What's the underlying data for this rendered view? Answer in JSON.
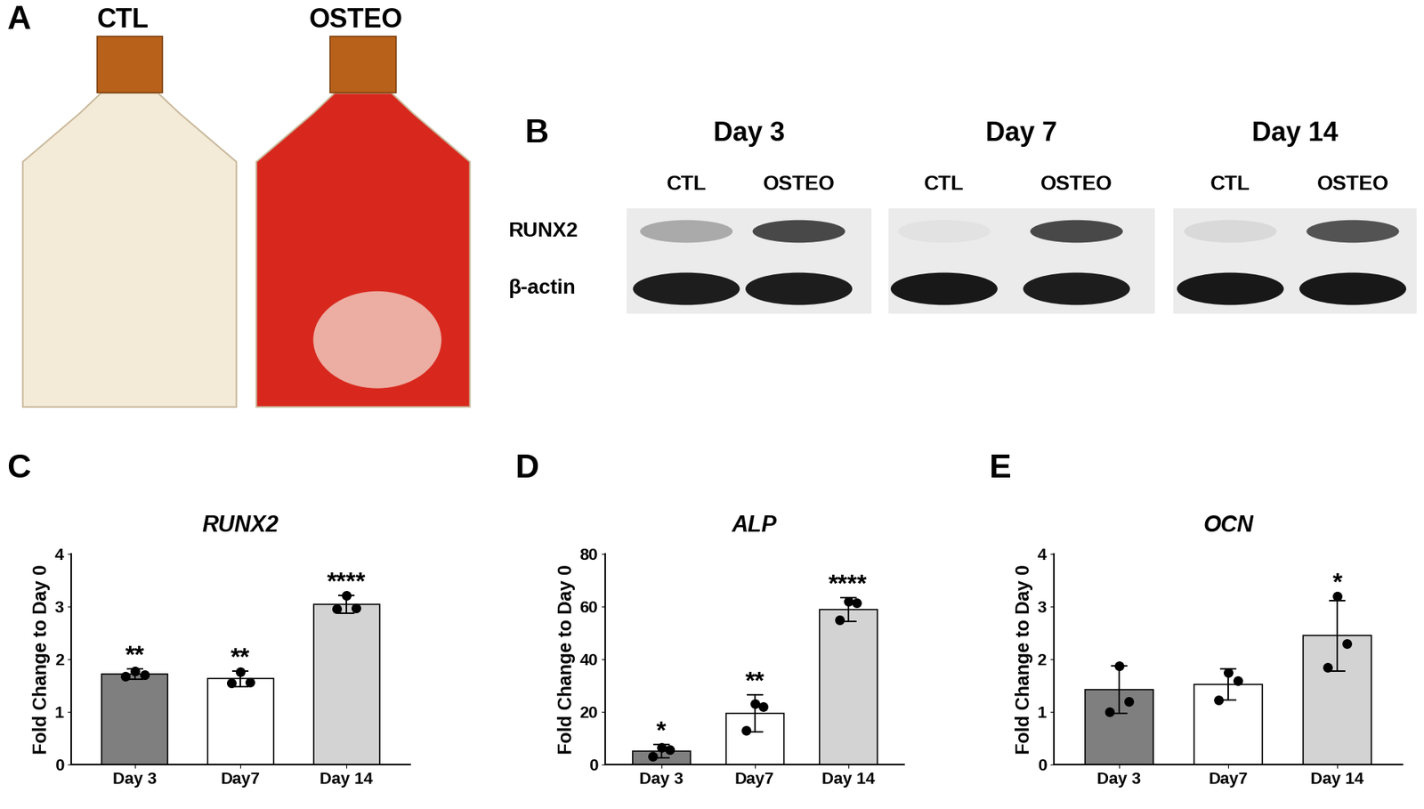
{
  "panel_A": {
    "label": "A",
    "flasks": [
      {
        "label": "CTL",
        "color": "#f3ead8"
      },
      {
        "label": "OSTEO",
        "color": "#d8281e"
      }
    ]
  },
  "panel_B": {
    "label": "B",
    "rows": [
      "RUNX2",
      "β-actin"
    ],
    "lanes": [
      "CTL",
      "OSTEO"
    ],
    "blots": [
      {
        "title": "Day 3",
        "intensity": [
          [
            0.3,
            0.75
          ],
          [
            0.95,
            0.95
          ]
        ]
      },
      {
        "title": "Day 7",
        "intensity": [
          [
            0.04,
            0.75
          ],
          [
            0.97,
            0.95
          ]
        ]
      },
      {
        "title": "Day 14",
        "intensity": [
          [
            0.08,
            0.7
          ],
          [
            0.97,
            0.97
          ]
        ]
      }
    ]
  },
  "chart_data": [
    {
      "type": "bar",
      "panel": "C",
      "title": "RUNX2",
      "y_label": "Fold Change to Day 0",
      "categories": [
        "Day 3",
        "Day7",
        "Day 14"
      ],
      "values": [
        1.72,
        1.63,
        3.05
      ],
      "errors": [
        0.1,
        0.15,
        0.17
      ],
      "points": [
        [
          1.68,
          1.78,
          1.7
        ],
        [
          1.55,
          1.76,
          1.57
        ],
        [
          2.96,
          3.22,
          2.98
        ]
      ],
      "significance": [
        "**",
        "**",
        "****"
      ],
      "colors": [
        "#7f7f7f",
        "#ffffff",
        "#d3d3d3"
      ],
      "ylim": [
        0,
        4
      ],
      "yticks": [
        0,
        1,
        2,
        3,
        4
      ]
    },
    {
      "type": "bar",
      "panel": "D",
      "title": "ALP",
      "y_label": "Fold Change to Day 0",
      "categories": [
        "Day 3",
        "Day7",
        "Day 14"
      ],
      "values": [
        5,
        19.5,
        59
      ],
      "errors": [
        2.5,
        7,
        4.5
      ],
      "points": [
        [
          3.0,
          6.5,
          5.5
        ],
        [
          13,
          23,
          22
        ],
        [
          55,
          62,
          61.5
        ]
      ],
      "significance": [
        "*",
        "**",
        "****"
      ],
      "colors": [
        "#7f7f7f",
        "#ffffff",
        "#d3d3d3"
      ],
      "ylim": [
        0,
        80
      ],
      "yticks": [
        0,
        20,
        40,
        60,
        80
      ]
    },
    {
      "type": "bar",
      "panel": "E",
      "title": "OCN",
      "y_label": "Fold Change to Day 0",
      "categories": [
        "Day 3",
        "Day7",
        "Day 14"
      ],
      "values": [
        1.42,
        1.52,
        2.45
      ],
      "errors": [
        0.45,
        0.3,
        0.67
      ],
      "points": [
        [
          1.0,
          1.87,
          1.2
        ],
        [
          1.22,
          1.75,
          1.6
        ],
        [
          1.85,
          3.2,
          2.3
        ]
      ],
      "significance": [
        "",
        "",
        "*"
      ],
      "colors": [
        "#7f7f7f",
        "#ffffff",
        "#d3d3d3"
      ],
      "ylim": [
        0,
        4
      ],
      "yticks": [
        0,
        1,
        2,
        3,
        4
      ]
    }
  ]
}
